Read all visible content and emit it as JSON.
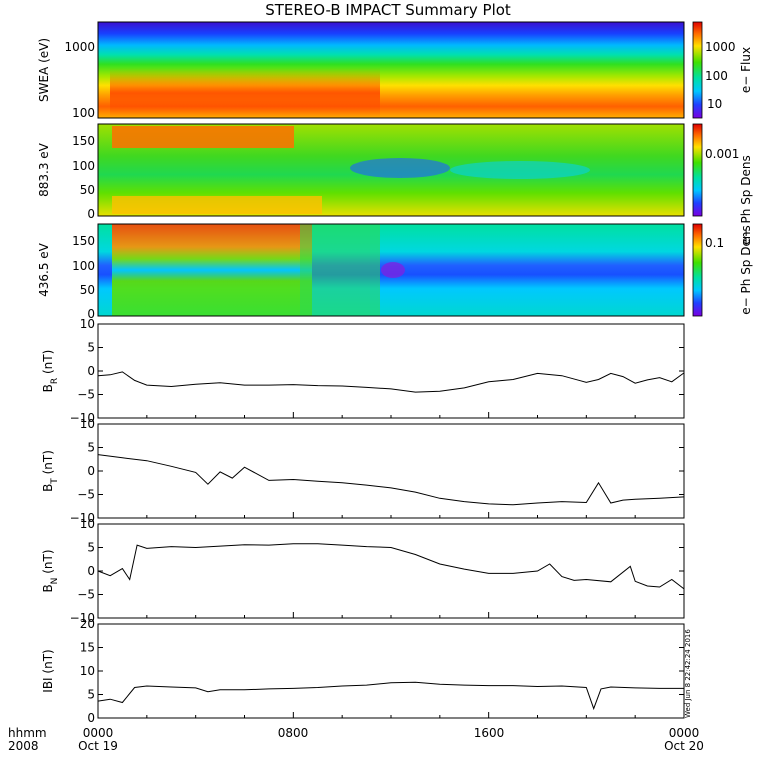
{
  "title": "STEREO-B IMPACT Summary Plot",
  "timestamp": "Wed Jun  8 22:42:24 2016",
  "x_axis": {
    "row_labels": [
      "hhmm",
      "2008"
    ],
    "ticks": [
      {
        "time": "0000",
        "date": "Oct 19"
      },
      {
        "time": "0800",
        "date": ""
      },
      {
        "time": "1600",
        "date": ""
      },
      {
        "time": "0000",
        "date": "Oct 20"
      }
    ]
  },
  "chart_data": [
    {
      "type": "heatmap",
      "ylabel": "SWEA (eV)",
      "scale": "log",
      "y_ticks": [
        "1000",
        "100"
      ],
      "colorbar_label": "e− Flux",
      "colorbar_ticks": [
        "1000",
        "100",
        "10"
      ],
      "description_values": {
        "high_flux_band_energy_eV": [
          90,
          140
        ],
        "peak_intervals": [
          [
            "0130",
            "0930"
          ]
        ]
      }
    },
    {
      "type": "heatmap",
      "ylabel": "883.3 eV",
      "y_ticks": [
        "150",
        "100",
        "50",
        "0"
      ],
      "ylim": [
        0,
        180
      ],
      "colorbar_label": "e− Ph Sp Dens",
      "colorbar_ticks": [
        "0.001"
      ]
    },
    {
      "type": "heatmap",
      "ylabel": "436.5 eV",
      "y_ticks": [
        "150",
        "100",
        "50",
        "0"
      ],
      "ylim": [
        0,
        180
      ],
      "colorbar_label": "e− Ph Sp Dens",
      "colorbar_ticks": [
        "0.1"
      ]
    },
    {
      "type": "line",
      "ylabel": "BR",
      "ylabel_main": "B",
      "ylabel_sub": "R",
      "ylabel_unit": "(nT)",
      "ylim": [
        -10,
        10
      ],
      "y_ticks": [
        "10",
        "5",
        "0",
        "−5",
        "−10"
      ],
      "x_hours": [
        0,
        0.5,
        1,
        1.5,
        2,
        3,
        4,
        5,
        6,
        7,
        8,
        9,
        10,
        11,
        12,
        13,
        14,
        15,
        16,
        17,
        18,
        19,
        20,
        20.5,
        21,
        21.5,
        22,
        22.5,
        23,
        23.5,
        24
      ],
      "y": [
        -1,
        -0.8,
        -0.2,
        -2,
        -3,
        -3.3,
        -2.8,
        -2.5,
        -3,
        -3,
        -2.9,
        -3.1,
        -3.2,
        -3.5,
        -3.8,
        -4.5,
        -4.3,
        -3.6,
        -2.3,
        -1.8,
        -0.5,
        -1,
        -2.4,
        -1.8,
        -0.5,
        -1.2,
        -2.6,
        -1.9,
        -1.4,
        -2.3,
        -0.4
      ]
    },
    {
      "type": "line",
      "ylabel": "BT",
      "ylabel_main": "B",
      "ylabel_sub": "T",
      "ylabel_unit": "(nT)",
      "ylim": [
        -10,
        10
      ],
      "y_ticks": [
        "10",
        "5",
        "0",
        "−5",
        "−10"
      ],
      "x_hours": [
        0,
        1,
        2,
        3,
        4,
        4.5,
        5,
        5.5,
        6,
        7,
        8,
        9,
        10,
        11,
        12,
        13,
        14,
        15,
        16,
        17,
        18,
        19,
        20,
        20.5,
        21,
        21.5,
        22,
        23,
        24
      ],
      "y": [
        3.5,
        2.8,
        2.2,
        1.0,
        -0.3,
        -2.8,
        -0.2,
        -1.5,
        0.8,
        -2,
        -1.8,
        -2.2,
        -2.5,
        -3,
        -3.6,
        -4.5,
        -5.8,
        -6.5,
        -7.0,
        -7.2,
        -6.8,
        -6.5,
        -6.7,
        -2.5,
        -6.8,
        -6.2,
        -6.0,
        -5.8,
        -5.5
      ]
    },
    {
      "type": "line",
      "ylabel": "BN",
      "ylabel_main": "B",
      "ylabel_sub": "N",
      "ylabel_unit": "(nT)",
      "ylim": [
        -10,
        10
      ],
      "y_ticks": [
        "10",
        "5",
        "0",
        "−5",
        "−10"
      ],
      "x_hours": [
        0,
        0.5,
        1,
        1.3,
        1.6,
        2,
        3,
        4,
        5,
        6,
        7,
        8,
        9,
        10,
        11,
        12,
        13,
        14,
        15,
        16,
        17,
        18,
        18.5,
        19,
        19.5,
        20,
        21,
        21.8,
        22,
        22.5,
        23,
        23.5,
        24
      ],
      "y": [
        0,
        -1,
        0.5,
        -1.8,
        5.5,
        4.8,
        5.2,
        5.0,
        5.3,
        5.6,
        5.5,
        5.8,
        5.8,
        5.5,
        5.2,
        5.0,
        3.5,
        1.5,
        0.4,
        -0.5,
        -0.5,
        0,
        1.5,
        -1.2,
        -2.0,
        -1.8,
        -2.3,
        1.0,
        -2.2,
        -3.2,
        -3.4,
        -1.8,
        -3.8
      ]
    },
    {
      "type": "line",
      "ylabel": "|B|",
      "ylabel_main": "IBI",
      "ylabel_sub": "",
      "ylabel_unit": "(nT)",
      "ylim": [
        0,
        20
      ],
      "y_ticks": [
        "20",
        "15",
        "10",
        "5",
        "0"
      ],
      "x_hours": [
        0,
        0.5,
        1,
        1.5,
        2,
        3,
        4,
        4.5,
        5,
        6,
        7,
        8,
        9,
        10,
        11,
        12,
        13,
        14,
        15,
        16,
        17,
        18,
        19,
        20,
        20.3,
        20.6,
        21,
        22,
        23,
        24
      ],
      "y": [
        3.6,
        4.0,
        3.3,
        6.5,
        6.8,
        6.6,
        6.4,
        5.6,
        6.0,
        6.0,
        6.2,
        6.3,
        6.5,
        6.8,
        7.0,
        7.5,
        7.6,
        7.2,
        7.0,
        6.9,
        6.9,
        6.7,
        6.8,
        6.5,
        2.0,
        6.2,
        6.6,
        6.4,
        6.3,
        6.3
      ]
    }
  ],
  "colors": {
    "line": "#000000",
    "frame": "#000000"
  }
}
